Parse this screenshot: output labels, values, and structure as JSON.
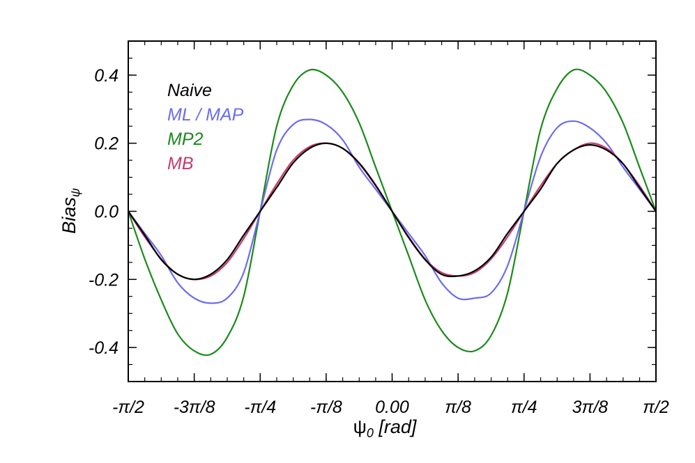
{
  "chart_data": {
    "type": "line",
    "title": "",
    "xlabel": {
      "symbol": "ψ",
      "subscript": "0",
      "unit": " [rad]"
    },
    "ylabel": {
      "main": "Bias",
      "subscript": "ψ"
    },
    "xlim": [
      -1.5708,
      1.5708
    ],
    "ylim": [
      -0.5,
      0.5
    ],
    "grid": false,
    "legend_position": "top-left",
    "x_ticks": [
      {
        "value": -1.5708,
        "label": "-π/2"
      },
      {
        "value": -1.1781,
        "label": "-3π/8"
      },
      {
        "value": -0.7854,
        "label": "-π/4"
      },
      {
        "value": -0.3927,
        "label": "-π/8"
      },
      {
        "value": 0.0,
        "label": "0.00"
      },
      {
        "value": 0.3927,
        "label": "π/8"
      },
      {
        "value": 0.7854,
        "label": "π/4"
      },
      {
        "value": 1.1781,
        "label": "3π/8"
      },
      {
        "value": 1.5708,
        "label": "π/2"
      }
    ],
    "y_ticks": [
      {
        "value": 0.4,
        "label": "0.4"
      },
      {
        "value": 0.2,
        "label": "0.2"
      },
      {
        "value": 0.0,
        "label": "0.0"
      },
      {
        "value": -0.2,
        "label": "-0.2"
      },
      {
        "value": -0.4,
        "label": "-0.4"
      }
    ],
    "y_minor_step": 0.05,
    "x_minor_step": 0.0982,
    "x": [
      -1.5708,
      -1.4726,
      -1.3744,
      -1.2763,
      -1.1781,
      -1.0799,
      -0.9817,
      -0.8836,
      -0.7854,
      -0.6872,
      -0.589,
      -0.4909,
      -0.3927,
      -0.2945,
      -0.1963,
      -0.0982,
      0.0,
      0.0982,
      0.1963,
      0.2945,
      0.3927,
      0.4909,
      0.589,
      0.6872,
      0.7854,
      0.8836,
      0.9817,
      1.0799,
      1.1781,
      1.2763,
      1.3744,
      1.4726,
      1.5708
    ],
    "series": [
      {
        "name": "Naive",
        "color": "#000000",
        "values": [
          0.0,
          -0.07,
          -0.142,
          -0.185,
          -0.2,
          -0.185,
          -0.142,
          -0.07,
          0.0,
          0.07,
          0.142,
          0.185,
          0.2,
          0.185,
          0.142,
          0.077,
          0.0,
          -0.077,
          -0.142,
          -0.185,
          -0.19,
          -0.175,
          -0.135,
          -0.065,
          0.0,
          0.065,
          0.14,
          0.18,
          0.195,
          0.18,
          0.14,
          0.07,
          0.0
        ]
      },
      {
        "name": "ML / MAP",
        "color": "#6b6bf0",
        "values": [
          0.0,
          -0.065,
          -0.13,
          -0.21,
          -0.255,
          -0.27,
          -0.255,
          -0.18,
          0.0,
          0.18,
          0.255,
          0.27,
          0.255,
          0.21,
          0.13,
          0.065,
          0.0,
          -0.065,
          -0.13,
          -0.21,
          -0.255,
          -0.255,
          -0.24,
          -0.16,
          0.0,
          0.16,
          0.245,
          0.265,
          0.245,
          0.2,
          0.13,
          0.065,
          0.0
        ]
      },
      {
        "name": "MP2",
        "color": "#1a8a1a",
        "values": [
          0.0,
          -0.14,
          -0.26,
          -0.36,
          -0.41,
          -0.42,
          -0.37,
          -0.25,
          0.0,
          0.25,
          0.37,
          0.415,
          0.4,
          0.35,
          0.26,
          0.13,
          0.0,
          -0.13,
          -0.26,
          -0.35,
          -0.4,
          -0.41,
          -0.365,
          -0.24,
          0.0,
          0.24,
          0.36,
          0.415,
          0.4,
          0.35,
          0.26,
          0.13,
          0.0
        ]
      },
      {
        "name": "MB",
        "color": "#c43a6a",
        "values": [
          0.0,
          -0.075,
          -0.14,
          -0.185,
          -0.2,
          -0.19,
          -0.15,
          -0.08,
          0.0,
          0.08,
          0.15,
          0.19,
          0.2,
          0.185,
          0.14,
          0.075,
          0.0,
          -0.075,
          -0.14,
          -0.18,
          -0.19,
          -0.18,
          -0.14,
          -0.075,
          0.0,
          0.075,
          0.14,
          0.18,
          0.2,
          0.185,
          0.14,
          0.075,
          0.0
        ]
      }
    ]
  }
}
